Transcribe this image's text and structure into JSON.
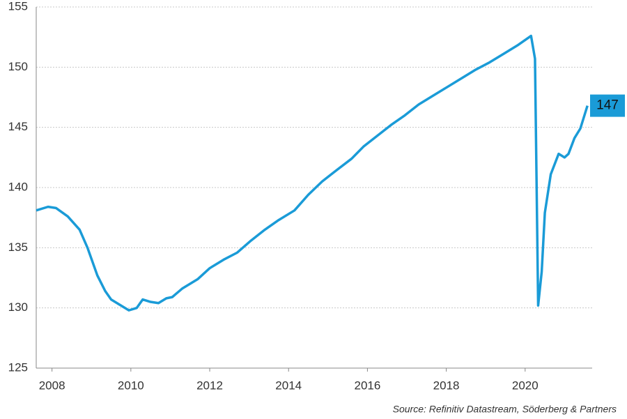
{
  "chart_data": {
    "type": "line",
    "source": "Source: Refinitiv Datastream, Söderberg & Partners",
    "end_label": "147",
    "x": [
      2007.6,
      2007.9,
      2008.1,
      2008.4,
      2008.7,
      2008.9,
      2009.15,
      2009.35,
      2009.5,
      2009.75,
      2009.95,
      2010.15,
      2010.3,
      2010.5,
      2010.7,
      2010.9,
      2011.05,
      2011.3,
      2011.7,
      2012.0,
      2012.35,
      2012.7,
      2013.05,
      2013.4,
      2013.75,
      2014.15,
      2014.5,
      2014.85,
      2015.2,
      2015.6,
      2015.9,
      2016.25,
      2016.6,
      2016.95,
      2017.3,
      2017.65,
      2018.0,
      2018.4,
      2018.75,
      2019.1,
      2019.45,
      2019.8,
      2020.15,
      2020.25,
      2020.33,
      2020.42,
      2020.5,
      2020.65,
      2020.85,
      2021.0,
      2021.1,
      2021.25,
      2021.4,
      2021.58
    ],
    "series": [
      {
        "color": "#1a9bd7",
        "values": [
          138.1,
          138.4,
          138.3,
          137.6,
          136.5,
          135.0,
          132.7,
          131.4,
          130.7,
          130.2,
          129.8,
          130.0,
          130.7,
          130.5,
          130.4,
          130.8,
          130.9,
          131.6,
          132.4,
          133.3,
          134.0,
          134.6,
          135.6,
          136.5,
          137.3,
          138.1,
          139.4,
          140.5,
          141.4,
          142.4,
          143.4,
          144.3,
          145.2,
          146.0,
          146.9,
          147.6,
          148.3,
          149.1,
          149.8,
          150.4,
          151.1,
          151.8,
          152.6,
          150.7,
          130.2,
          133.0,
          137.9,
          141.1,
          142.8,
          142.5,
          142.8,
          144.1,
          144.9,
          146.8
        ]
      }
    ],
    "xlim": [
      2007.6,
      2021.7
    ],
    "xticks": [
      2008,
      2010,
      2012,
      2014,
      2016,
      2018,
      2020
    ],
    "ylim": [
      125,
      155
    ],
    "yticks": [
      125,
      130,
      135,
      140,
      145,
      150,
      155
    ],
    "grid": true
  }
}
